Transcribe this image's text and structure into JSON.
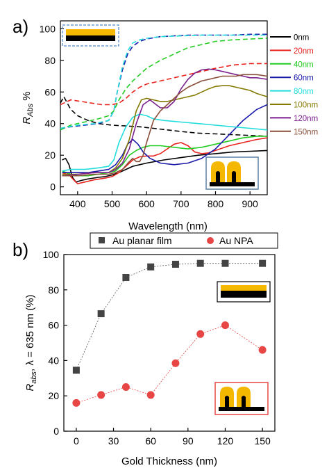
{
  "panel_labels": [
    "a)",
    "b)"
  ],
  "chart_data": [
    {
      "type": "line",
      "panel": "a)",
      "xlabel": "Wavelength (nm)",
      "ylabel_main": "R",
      "ylabel_sub": "Abs",
      "ylabel_unit": " %",
      "xlim": [
        350,
        950
      ],
      "ylim": [
        -5,
        105
      ],
      "xticks": [
        400,
        500,
        600,
        700,
        800,
        900
      ],
      "yticks": [
        0,
        20,
        40,
        60,
        80,
        100
      ],
      "legend_position": "right",
      "series": [
        {
          "name": "0nm",
          "color": "#000000",
          "style": "solid",
          "x": [
            355,
            365,
            375,
            385,
            395,
            410,
            430,
            460,
            480,
            500,
            520,
            540,
            560,
            580,
            600,
            650,
            700,
            750,
            800,
            850,
            900,
            950
          ],
          "y": [
            17,
            18,
            14,
            6,
            3,
            4,
            5,
            6,
            6.5,
            7.5,
            9,
            11,
            13,
            14,
            15,
            17,
            18.5,
            20,
            21,
            22,
            22.5,
            23
          ]
        },
        {
          "name": "0nm",
          "color": "#000000",
          "style": "dash",
          "x": [
            350,
            360,
            370,
            380,
            400,
            430,
            460,
            500,
            540,
            580,
            620,
            660,
            700,
            750,
            800,
            850,
            900,
            950
          ],
          "y": [
            53,
            57,
            53,
            49,
            45,
            42,
            40,
            39,
            38.5,
            38,
            37,
            36,
            35,
            34,
            33.5,
            33,
            32.5,
            32
          ]
        },
        {
          "name": "20nm",
          "color": "#e8221d",
          "style": "solid",
          "x": [
            355,
            370,
            390,
            400,
            420,
            450,
            480,
            500,
            520,
            540,
            560,
            580,
            600,
            620,
            640,
            660,
            680,
            700,
            720,
            740,
            760,
            780,
            800,
            840,
            880,
            920,
            950
          ],
          "y": [
            8,
            9,
            4,
            2,
            3,
            4.5,
            5.5,
            6.5,
            9,
            13,
            17,
            19,
            19.5,
            19.5,
            21,
            24,
            27,
            28,
            26,
            22,
            21,
            21.5,
            23,
            26,
            28,
            30,
            31
          ]
        },
        {
          "name": "20nm",
          "color": "#e8221d",
          "style": "dash",
          "x": [
            350,
            380,
            410,
            440,
            470,
            490,
            500,
            520,
            540,
            560,
            580,
            600,
            640,
            680,
            720,
            760,
            800,
            850,
            900,
            950
          ],
          "y": [
            52,
            55,
            54,
            53,
            52,
            52,
            52,
            53,
            56,
            60,
            63,
            65,
            67,
            69,
            71,
            73,
            75,
            77,
            78,
            78
          ]
        },
        {
          "name": "40nm",
          "color": "#22cc22",
          "style": "solid",
          "x": [
            355,
            380,
            400,
            430,
            460,
            490,
            510,
            530,
            550,
            570,
            590,
            610,
            640,
            680,
            720,
            760,
            800,
            840,
            880,
            920,
            950
          ],
          "y": [
            10,
            8,
            7,
            7,
            8,
            9,
            10,
            14,
            20,
            23,
            25,
            26,
            26,
            25,
            24,
            25,
            27,
            29,
            31,
            32,
            32
          ]
        },
        {
          "name": "40nm",
          "color": "#22cc22",
          "style": "dash",
          "x": [
            350,
            380,
            420,
            460,
            490,
            505,
            520,
            540,
            560,
            580,
            600,
            640,
            680,
            720,
            760,
            800,
            850,
            900,
            950
          ],
          "y": [
            36,
            39,
            41,
            43,
            45,
            48,
            55,
            62,
            67,
            71,
            75,
            80,
            84,
            88,
            90,
            92,
            93,
            93.5,
            94
          ]
        },
        {
          "name": "60nm",
          "color": "#1a1aaa",
          "style": "solid",
          "x": [
            355,
            380,
            400,
            430,
            460,
            490,
            510,
            530,
            545,
            560,
            575,
            590,
            610,
            640,
            680,
            720,
            760,
            800,
            840,
            880,
            920,
            950
          ],
          "y": [
            9,
            9,
            9,
            9,
            10,
            11,
            14,
            20,
            27,
            30,
            27,
            22,
            18,
            15,
            14,
            15,
            18,
            24,
            33,
            42,
            49,
            52
          ]
        },
        {
          "name": "60nm",
          "color": "#1a1aaa",
          "style": "dash",
          "x": [
            350,
            380,
            420,
            460,
            490,
            505,
            515,
            530,
            545,
            560,
            580,
            600,
            640,
            680,
            720,
            760,
            800,
            850,
            900,
            950
          ],
          "y": [
            37,
            38,
            39,
            40,
            42,
            48,
            60,
            74,
            84,
            89,
            92,
            93.5,
            95,
            95.5,
            96,
            96,
            96,
            96,
            96.5,
            96.5
          ]
        },
        {
          "name": "80nm",
          "color": "#22dddd",
          "style": "solid",
          "x": [
            355,
            380,
            420,
            460,
            490,
            505,
            520,
            540,
            560,
            580,
            600,
            620,
            650,
            700,
            750,
            800,
            850,
            900,
            950
          ],
          "y": [
            10,
            11,
            11,
            12,
            13,
            17,
            28,
            38,
            44,
            46,
            45,
            43,
            42,
            41,
            40,
            39,
            38,
            37,
            36
          ]
        },
        {
          "name": "80nm",
          "color": "#22dddd",
          "style": "dash",
          "x": [
            350,
            400,
            450,
            490,
            505,
            515,
            530,
            545,
            560,
            580,
            600,
            640,
            700,
            760,
            800,
            850,
            900,
            950
          ],
          "y": [
            37,
            39,
            40,
            42,
            48,
            60,
            76,
            86,
            91,
            93,
            94,
            95,
            95.5,
            96,
            96,
            96,
            96,
            96
          ]
        },
        {
          "name": "100nm",
          "color": "#857a00",
          "style": "solid",
          "x": [
            355,
            400,
            450,
            490,
            510,
            530,
            550,
            570,
            585,
            600,
            620,
            640,
            660,
            680,
            700,
            720,
            740,
            760,
            780,
            800,
            820,
            840,
            860,
            880,
            900,
            920,
            950
          ],
          "y": [
            8,
            8,
            9,
            9,
            12,
            18,
            30,
            48,
            55,
            56,
            55,
            54,
            54,
            55,
            56,
            57,
            58,
            60,
            62,
            63.5,
            64,
            64,
            63,
            62,
            61,
            59,
            57
          ]
        },
        {
          "name": "120nm",
          "color": "#7a1f8c",
          "style": "solid",
          "x": [
            355,
            400,
            450,
            490,
            510,
            530,
            550,
            570,
            590,
            610,
            640,
            660,
            680,
            700,
            720,
            740,
            760,
            780,
            800,
            820,
            840,
            860,
            880,
            900,
            920,
            950
          ],
          "y": [
            7,
            8,
            9,
            9,
            11,
            15,
            24,
            40,
            52,
            55,
            50,
            50,
            54,
            62,
            68,
            72,
            74,
            74.5,
            74,
            73,
            72,
            71,
            70,
            69,
            69,
            68
          ]
        },
        {
          "name": "150nm",
          "color": "#8a4f3a",
          "style": "solid",
          "x": [
            355,
            400,
            450,
            490,
            510,
            530,
            550,
            560,
            570,
            580,
            590,
            600,
            620,
            640,
            660,
            680,
            700,
            720,
            740,
            760,
            780,
            800,
            820,
            840,
            860,
            880,
            900,
            920,
            950
          ],
          "y": [
            7,
            7,
            8,
            8,
            9,
            11,
            16,
            18,
            16,
            16,
            20,
            28,
            42,
            48,
            52,
            56,
            60,
            63,
            65,
            67,
            68,
            69,
            70,
            70,
            70,
            71,
            71,
            71,
            70
          ]
        }
      ]
    },
    {
      "type": "scatter",
      "panel": "b)",
      "xlabel": "Gold Thickness (nm)",
      "ylabel_main": "R",
      "ylabel_sub": "abs",
      "ylabel_rest": ", λ = 635 nm (%)",
      "xlim": [
        -10,
        160
      ],
      "ylim": [
        0,
        100
      ],
      "xticks": [
        0,
        30,
        60,
        90,
        120,
        150
      ],
      "yticks": [
        0,
        20,
        40,
        60,
        80,
        100
      ],
      "legend_position": "top",
      "series": [
        {
          "name": "Au planar film",
          "color": "#444444",
          "marker": "square",
          "x": [
            0,
            20,
            40,
            60,
            80,
            100,
            120,
            150
          ],
          "y": [
            34.5,
            66.5,
            87,
            93,
            94.5,
            95,
            95,
            95
          ]
        },
        {
          "name": "Au NPA",
          "color": "#e84545",
          "marker": "circle",
          "x": [
            0,
            20,
            40,
            60,
            80,
            100,
            120,
            150
          ],
          "y": [
            16,
            20.5,
            25,
            20.5,
            38.5,
            55,
            60,
            46
          ]
        }
      ]
    }
  ]
}
